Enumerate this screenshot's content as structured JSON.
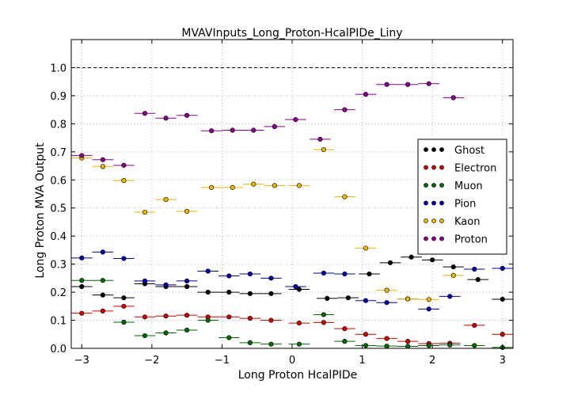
{
  "chart_data": {
    "type": "scatter",
    "title": "MVAVInputs_Long_Proton-HcalPIDe_Liny",
    "xlabel": "Long Proton HcalPIDe",
    "ylabel": "Long Proton MVA Output",
    "xlim": [
      -3.15,
      3.15
    ],
    "ylim": [
      0.0,
      1.1
    ],
    "xticks": [
      -3,
      -2,
      -1,
      0,
      1,
      2,
      3
    ],
    "yticks": [
      0.0,
      0.1,
      0.2,
      0.3,
      0.4,
      0.5,
      0.6,
      0.7,
      0.8,
      0.9,
      1.0
    ],
    "ytick_labels": [
      "0.0",
      "0.1",
      "0.2",
      "0.3",
      "0.4",
      "0.5",
      "0.6",
      "0.7",
      "0.8",
      "0.9",
      "1.0"
    ],
    "xtick_labels": [
      "−3",
      "−2",
      "−1",
      "0",
      "1",
      "2",
      "3"
    ],
    "reference_line_y": 1.0,
    "grid": true,
    "legend_position": "right",
    "series": [
      {
        "name": "Ghost",
        "color": "#000000",
        "x": [
          -3.0,
          -2.7,
          -2.4,
          -2.1,
          -1.8,
          -1.5,
          -1.2,
          -0.9,
          -0.6,
          -0.3,
          0.1,
          0.5,
          0.8,
          1.1,
          1.4,
          1.7,
          2.0,
          2.3,
          2.65,
          3.0
        ],
        "y": [
          0.22,
          0.19,
          0.18,
          0.23,
          0.22,
          0.22,
          0.2,
          0.2,
          0.195,
          0.195,
          0.21,
          0.178,
          0.18,
          0.265,
          0.305,
          0.325,
          0.315,
          0.29,
          0.245,
          0.175
        ]
      },
      {
        "name": "Electron",
        "color": "#cc0000",
        "x": [
          -3.0,
          -2.7,
          -2.4,
          -2.1,
          -1.8,
          -1.5,
          -1.2,
          -0.9,
          -0.6,
          -0.3,
          0.1,
          0.45,
          0.75,
          1.05,
          1.35,
          1.65,
          1.95,
          2.25,
          2.6,
          3.0
        ],
        "y": [
          0.125,
          0.133,
          0.15,
          0.112,
          0.115,
          0.118,
          0.112,
          0.112,
          0.107,
          0.1,
          0.09,
          0.092,
          0.07,
          0.05,
          0.035,
          0.025,
          0.017,
          0.018,
          0.082,
          0.05
        ]
      },
      {
        "name": "Muon",
        "color": "#006600",
        "x": [
          -3.0,
          -2.7,
          -2.4,
          -2.1,
          -1.8,
          -1.5,
          -1.2,
          -0.9,
          -0.6,
          -0.3,
          0.1,
          0.45,
          0.75,
          1.05,
          1.35,
          1.65,
          1.95,
          2.25,
          2.6,
          3.0
        ],
        "y": [
          0.242,
          0.242,
          0.093,
          0.045,
          0.055,
          0.065,
          0.1,
          0.038,
          0.02,
          0.015,
          0.015,
          0.12,
          0.025,
          0.01,
          0.008,
          0.007,
          0.01,
          0.012,
          0.01,
          0.003
        ]
      },
      {
        "name": "Pion",
        "color": "#0000aa",
        "x": [
          -3.0,
          -2.7,
          -2.4,
          -2.1,
          -1.8,
          -1.5,
          -1.2,
          -0.9,
          -0.6,
          -0.3,
          0.05,
          0.45,
          0.75,
          1.05,
          1.35,
          1.65,
          1.95,
          2.25,
          2.6,
          3.0
        ],
        "y": [
          0.322,
          0.343,
          0.32,
          0.24,
          0.226,
          0.24,
          0.275,
          0.258,
          0.265,
          0.25,
          0.22,
          0.268,
          0.265,
          0.17,
          0.163,
          0.176,
          0.14,
          0.185,
          0.282,
          0.285
        ]
      },
      {
        "name": "Kaon",
        "color": "#e6b800",
        "x": [
          -3.0,
          -2.7,
          -2.4,
          -2.1,
          -1.8,
          -1.5,
          -1.15,
          -0.85,
          -0.55,
          -0.25,
          0.1,
          0.45,
          0.75,
          1.05,
          1.35,
          1.65,
          1.95,
          2.3
        ],
        "y": [
          0.678,
          0.648,
          0.598,
          0.485,
          0.53,
          0.488,
          0.573,
          0.573,
          0.585,
          0.58,
          0.58,
          0.708,
          0.54,
          0.357,
          0.207,
          0.176,
          0.174,
          0.26
        ]
      },
      {
        "name": "Proton",
        "color": "#880088",
        "x": [
          -3.0,
          -2.7,
          -2.4,
          -2.1,
          -1.8,
          -1.5,
          -1.15,
          -0.85,
          -0.55,
          -0.25,
          0.05,
          0.4,
          0.75,
          1.05,
          1.35,
          1.65,
          1.95,
          2.3
        ],
        "y": [
          0.687,
          0.672,
          0.652,
          0.837,
          0.82,
          0.83,
          0.775,
          0.777,
          0.777,
          0.79,
          0.815,
          0.745,
          0.85,
          0.905,
          0.94,
          0.94,
          0.943,
          0.893
        ]
      }
    ]
  }
}
